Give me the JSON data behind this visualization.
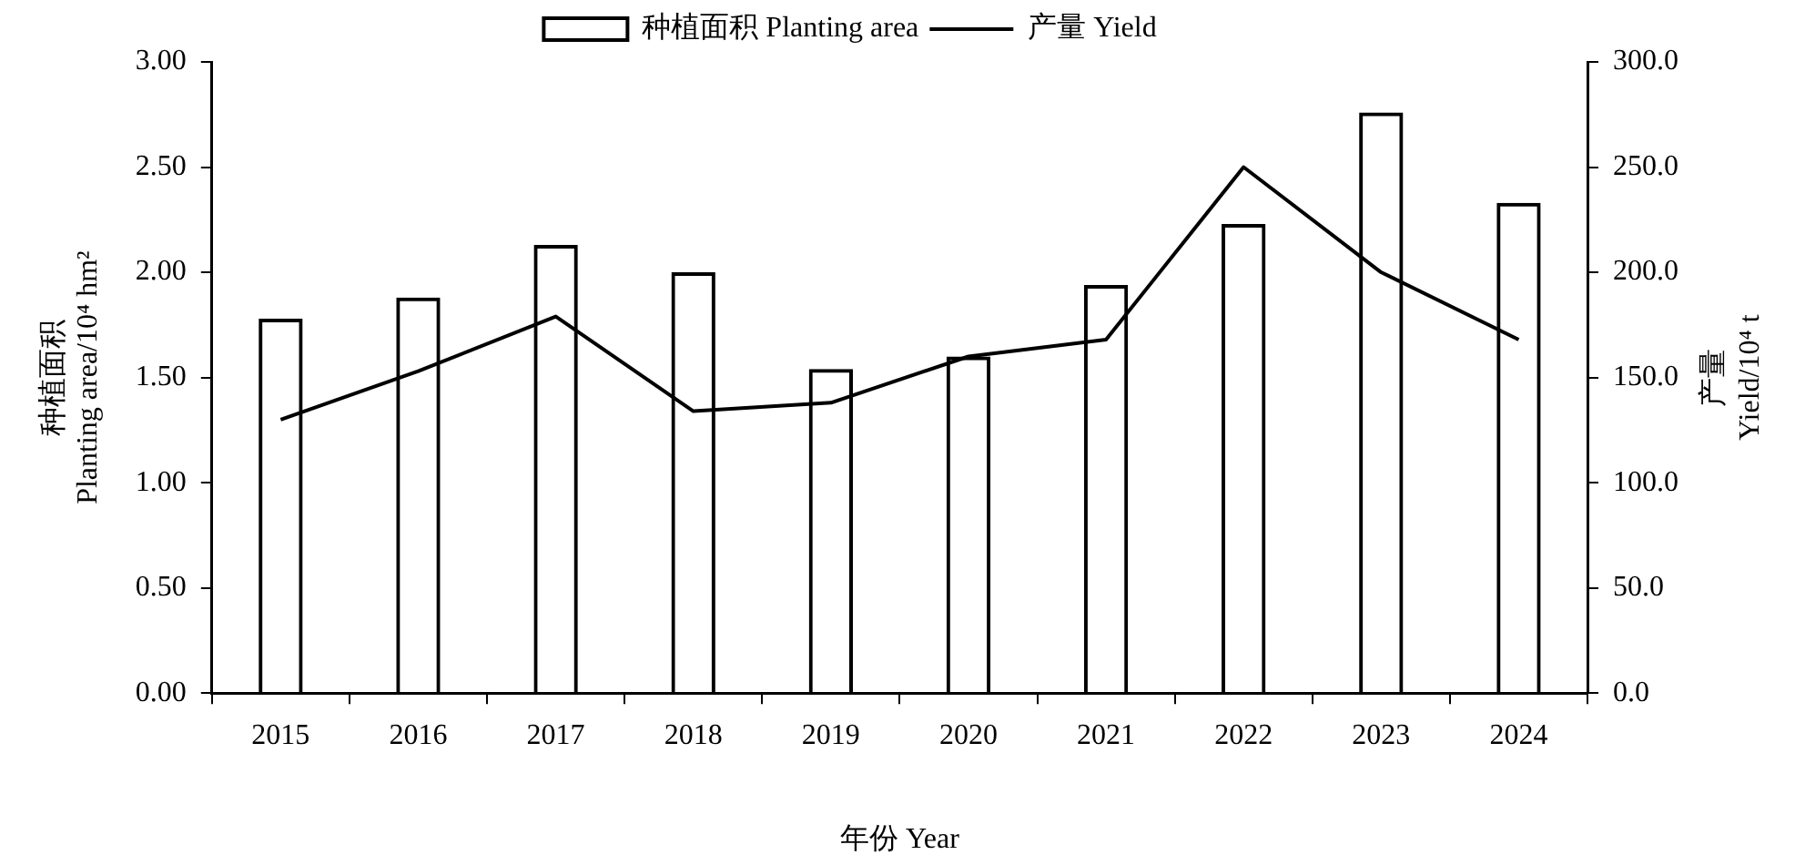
{
  "chart_data": {
    "type": "bar",
    "categories": [
      "2015",
      "2016",
      "2017",
      "2018",
      "2019",
      "2020",
      "2021",
      "2022",
      "2023",
      "2024"
    ],
    "series": [
      {
        "name": "种植面积 Planting area",
        "color": "#000000",
        "values": [
          1.78,
          1.88,
          2.13,
          2.0,
          1.54,
          1.6,
          1.94,
          2.23,
          2.76,
          2.33
        ]
      },
      {
        "name": "产量 Yield",
        "type": "line",
        "axis": "y2",
        "color": "#000000",
        "values": [
          130,
          153,
          179,
          134,
          138,
          160,
          168,
          250,
          200,
          168
        ]
      }
    ],
    "xlabel": "年份 Year",
    "ylabel": "种植面积\nPlanting area/10⁴ hm²",
    "y2label": "产量\nYield/10⁴ t",
    "ylim": [
      0,
      3
    ],
    "yticks": [
      {
        "value": 0,
        "label": "0.00"
      },
      {
        "value": 0.5,
        "label": "0.50"
      },
      {
        "value": 1,
        "label": "1.00"
      },
      {
        "value": 1.5,
        "label": "1.50"
      },
      {
        "value": 2,
        "label": "2.00"
      },
      {
        "value": 2.5,
        "label": "2.50"
      },
      {
        "value": 3,
        "label": "3.00"
      }
    ],
    "y2lim": [
      0,
      300
    ],
    "y2ticks": [
      {
        "value": 0,
        "label": "0.0"
      },
      {
        "value": 50,
        "label": "50.0"
      },
      {
        "value": 100,
        "label": "100.0"
      },
      {
        "value": 150,
        "label": "150.0"
      },
      {
        "value": 200,
        "label": "200.0"
      },
      {
        "value": 250,
        "label": "250.0"
      },
      {
        "value": 300,
        "label": "300.0"
      }
    ],
    "grid": false,
    "legend": "top",
    "marker": "none",
    "line_style": "solid"
  }
}
